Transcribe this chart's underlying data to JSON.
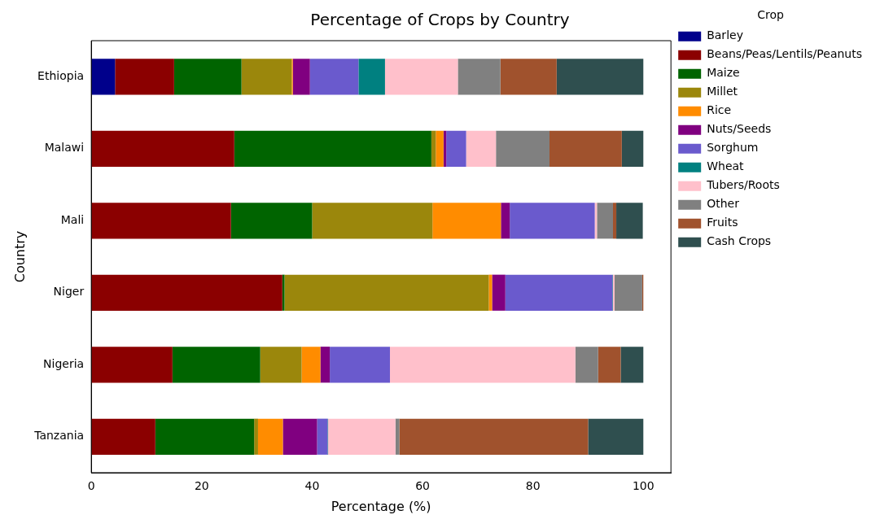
{
  "chart_data": {
    "type": "bar",
    "orientation": "horizontal",
    "stacked": true,
    "title": "Percentage of Crops by Country",
    "xlabel": "Percentage (%)",
    "ylabel": "Country",
    "legend_title": "Crop",
    "legend": "right",
    "categories": [
      "Ethiopia",
      "Malawi",
      "Mali",
      "Niger",
      "Nigeria",
      "Tanzania"
    ],
    "xlim": [
      0,
      105
    ],
    "xticks": [
      0,
      20,
      40,
      60,
      80,
      100
    ],
    "grid": false,
    "series": [
      {
        "name": "Barley",
        "color": "#00008b",
        "values": [
          4.3,
          0,
          0,
          0,
          0,
          0
        ]
      },
      {
        "name": "Beans/Peas/Lentils/Peanuts",
        "color": "#8b0000",
        "values": [
          10.7,
          25.9,
          25.3,
          34.6,
          14.7,
          11.6
        ]
      },
      {
        "name": "Maize",
        "color": "#006400",
        "values": [
          12.2,
          35.7,
          14.7,
          0.4,
          15.9,
          17.9
        ]
      },
      {
        "name": "Millet",
        "color": "#9b870c",
        "values": [
          9.1,
          0.8,
          21.8,
          37.0,
          7.5,
          0.7
        ]
      },
      {
        "name": "Rice",
        "color": "#ff8c00",
        "values": [
          0.2,
          1.4,
          12.4,
          0.6,
          3.4,
          4.5
        ]
      },
      {
        "name": "Nuts/Seeds",
        "color": "#800080",
        "values": [
          3.1,
          0.5,
          1.6,
          2.4,
          1.7,
          6.2
        ]
      },
      {
        "name": "Sorghum",
        "color": "#6a5acd",
        "values": [
          8.8,
          3.6,
          15.4,
          19.4,
          10.9,
          1.9
        ]
      },
      {
        "name": "Wheat",
        "color": "#008080",
        "values": [
          4.8,
          0,
          null,
          0.1,
          0,
          0.1
        ]
      },
      {
        "name": "Tubers/Roots",
        "color": "#ffc0cb",
        "values": [
          13.2,
          5.4,
          0.4,
          0.3,
          33.6,
          12.2
        ]
      },
      {
        "name": "Other",
        "color": "#808080",
        "values": [
          7.7,
          9.7,
          2.9,
          5.0,
          4.1,
          0.7
        ]
      },
      {
        "name": "Fruits",
        "color": "#a0522d",
        "values": [
          10.2,
          13.1,
          0.6,
          0.2,
          4.1,
          34.2
        ]
      },
      {
        "name": "Cash Crops",
        "color": "#2f4f4f",
        "values": [
          15.7,
          3.9,
          4.8,
          0,
          4.1,
          10.0
        ]
      }
    ]
  }
}
